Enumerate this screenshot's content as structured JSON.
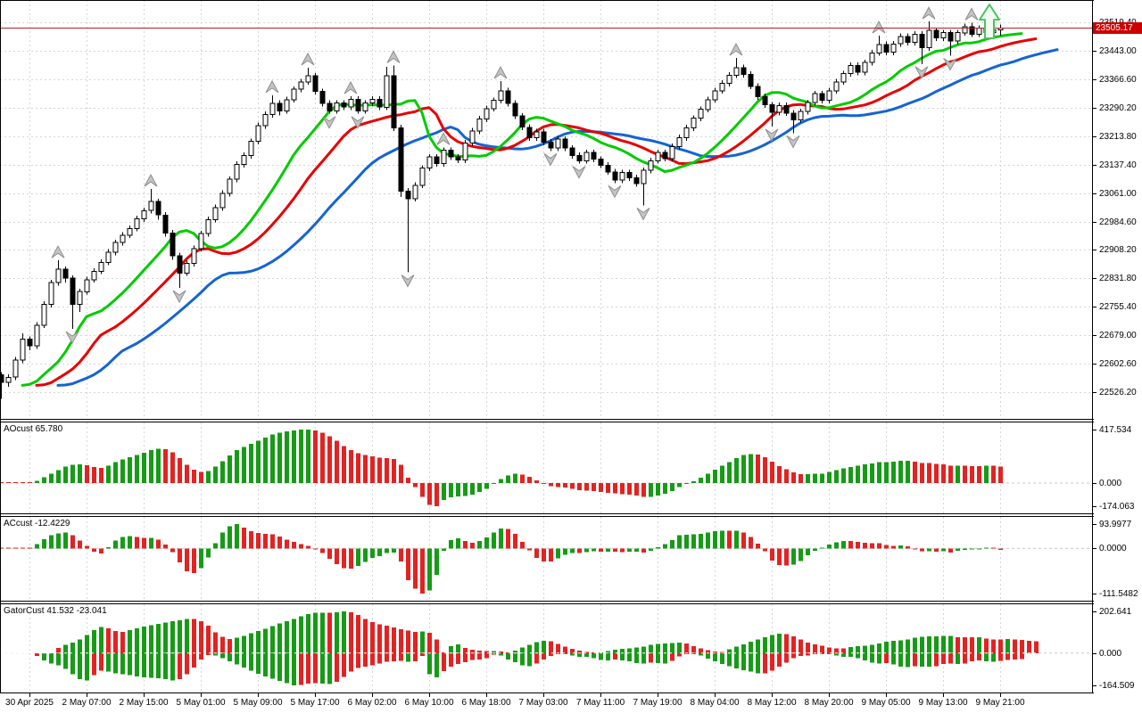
{
  "colors": {
    "background": "#ffffff",
    "grid": "#d6d6d6",
    "candle_up_fill": "#ffffff",
    "candle_down_fill": "#000000",
    "candle_border": "#000000",
    "alligator_jaw_blue": "#1464d2",
    "alligator_teeth_red": "#e80000",
    "alligator_lips_green": "#00cc00",
    "osc_up_green": "#169b16",
    "osc_down_red": "#e32222",
    "price_line": "#b22222",
    "price_label_bg": "#cc0000",
    "price_label_text": "#ffffff",
    "fractal_gray": "#c4c4c4",
    "fractal_border": "#8e8e8e",
    "signal_arrow_green": "#4cc25c"
  },
  "chart_data": {
    "type": "candlestick-with-oscillators",
    "timeframe_hint": "H1",
    "current_price": "23505.17",
    "current_price_value": 23505.17,
    "price_range": [
      22454,
      23580
    ],
    "price_labels": [
      "23519.40",
      "23443.00",
      "23366.60",
      "23290.20",
      "23213.80",
      "23137.40",
      "23061.00",
      "22984.60",
      "22908.20",
      "22831.80",
      "22755.40",
      "22679.00",
      "22602.60",
      "22526.20"
    ],
    "time_labels": [
      "30 Apr 2025",
      "2 May 07:00",
      "2 May 15:00",
      "5 May 01:00",
      "5 May 09:00",
      "5 May 17:00",
      "6 May 02:00",
      "6 May 10:00",
      "6 May 18:00",
      "7 May 03:00",
      "7 May 11:00",
      "7 May 19:00",
      "8 May 04:00",
      "8 May 12:00",
      "8 May 20:00",
      "9 May 05:00",
      "9 May 13:00",
      "9 May 21:00"
    ],
    "time_label_start_bar": 4,
    "time_label_step": 8,
    "alligator": {
      "jaw": {
        "period": 13,
        "shift": 8,
        "color_key": "alligator_jaw_blue"
      },
      "teeth": {
        "period": 8,
        "shift": 5,
        "color_key": "alligator_teeth_red"
      },
      "lips": {
        "period": 5,
        "shift": 3,
        "color_key": "alligator_lips_green"
      }
    },
    "signal_arrow": {
      "bar": 138,
      "price_top": 23568,
      "price_bottom": 23477
    },
    "panes": [
      {
        "id": "ao",
        "indicator": "AOcust",
        "title": "AOcust 65.780",
        "value": "65.780",
        "axis_max": "417.534",
        "axis_zero": "0.000",
        "axis_min": "-174.063"
      },
      {
        "id": "ac",
        "indicator": "ACcust",
        "title": "ACcust -12.4229",
        "value": "-12.4229",
        "axis_max": "93.9977",
        "axis_zero": "0.0000",
        "axis_min": "-111.5482"
      },
      {
        "id": "gator",
        "indicator": "GatorCust",
        "title": "GatorCust 41.532 -23.041",
        "value": "41.532 -23.041",
        "axis_max": "202.641",
        "axis_zero": "0.000",
        "axis_min": "-164.509"
      }
    ],
    "candles": [
      [
        22572,
        22580,
        22508,
        22552
      ],
      [
        22552,
        22574,
        22540,
        22566
      ],
      [
        22566,
        22620,
        22558,
        22612
      ],
      [
        22612,
        22684,
        22604,
        22668
      ],
      [
        22668,
        22676,
        22638,
        22650
      ],
      [
        22650,
        22714,
        22642,
        22706
      ],
      [
        22706,
        22770,
        22698,
        22762
      ],
      [
        22762,
        22828,
        22754,
        22820
      ],
      [
        22820,
        22880,
        22812,
        22856
      ],
      [
        22856,
        22864,
        22820,
        22832
      ],
      [
        22832,
        22840,
        22696,
        22762
      ],
      [
        22762,
        22804,
        22742,
        22796
      ],
      [
        22796,
        22836,
        22788,
        22828
      ],
      [
        22828,
        22859,
        22820,
        22851
      ],
      [
        22851,
        22883,
        22843,
        22875
      ],
      [
        22875,
        22910,
        22867,
        22902
      ],
      [
        22902,
        22936,
        22894,
        22928
      ],
      [
        22928,
        22956,
        22920,
        22948
      ],
      [
        22948,
        22974,
        22940,
        22966
      ],
      [
        22966,
        23000,
        22958,
        22992
      ],
      [
        22992,
        23022,
        22984,
        23014
      ],
      [
        23014,
        23072,
        23006,
        23038
      ],
      [
        23038,
        23046,
        22990,
        23002
      ],
      [
        23002,
        23010,
        22944,
        22954
      ],
      [
        22954,
        22962,
        22882,
        22893
      ],
      [
        22893,
        22901,
        22806,
        22846
      ],
      [
        22846,
        22880,
        22838,
        22872
      ],
      [
        22872,
        22920,
        22864,
        22912
      ],
      [
        22912,
        22960,
        22904,
        22952
      ],
      [
        22952,
        22998,
        22944,
        22990
      ],
      [
        22990,
        23030,
        22982,
        23022
      ],
      [
        23022,
        23068,
        23014,
        23060
      ],
      [
        23060,
        23106,
        23052,
        23098
      ],
      [
        23098,
        23146,
        23090,
        23138
      ],
      [
        23138,
        23170,
        23130,
        23162
      ],
      [
        23162,
        23208,
        23154,
        23200
      ],
      [
        23200,
        23250,
        23192,
        23242
      ],
      [
        23242,
        23280,
        23234,
        23272
      ],
      [
        23272,
        23324,
        23264,
        23302
      ],
      [
        23302,
        23310,
        23270,
        23282
      ],
      [
        23282,
        23320,
        23274,
        23312
      ],
      [
        23312,
        23348,
        23304,
        23340
      ],
      [
        23340,
        23368,
        23332,
        23360
      ],
      [
        23360,
        23398,
        23352,
        23376
      ],
      [
        23376,
        23384,
        23326,
        23334
      ],
      [
        23334,
        23342,
        23294,
        23302
      ],
      [
        23302,
        23310,
        23274,
        23282
      ],
      [
        23282,
        23311,
        23274,
        23303
      ],
      [
        23303,
        23311,
        23284,
        23292
      ],
      [
        23292,
        23321,
        23284,
        23313
      ],
      [
        23313,
        23321,
        23274,
        23282
      ],
      [
        23282,
        23311,
        23274,
        23303
      ],
      [
        23303,
        23321,
        23295,
        23313
      ],
      [
        23313,
        23321,
        23284,
        23292
      ],
      [
        23292,
        23400,
        23284,
        23376
      ],
      [
        23376,
        23404,
        23228,
        23236
      ],
      [
        23236,
        23244,
        23050,
        23066
      ],
      [
        23066,
        23074,
        22848,
        23046
      ],
      [
        23046,
        23090,
        23038,
        23082
      ],
      [
        23082,
        23136,
        23074,
        23128
      ],
      [
        23128,
        23166,
        23120,
        23158
      ],
      [
        23158,
        23166,
        23132,
        23140
      ],
      [
        23140,
        23184,
        23132,
        23176
      ],
      [
        23176,
        23184,
        23150,
        23158
      ],
      [
        23158,
        23166,
        23142,
        23150
      ],
      [
        23150,
        23204,
        23142,
        23196
      ],
      [
        23196,
        23236,
        23188,
        23228
      ],
      [
        23228,
        23268,
        23220,
        23260
      ],
      [
        23260,
        23296,
        23252,
        23288
      ],
      [
        23288,
        23318,
        23280,
        23310
      ],
      [
        23310,
        23362,
        23302,
        23336
      ],
      [
        23336,
        23344,
        23294,
        23302
      ],
      [
        23302,
        23310,
        23260,
        23268
      ],
      [
        23268,
        23276,
        23230,
        23238
      ],
      [
        23238,
        23246,
        23202,
        23210
      ],
      [
        23210,
        23234,
        23202,
        23226
      ],
      [
        23226,
        23234,
        23190,
        23198
      ],
      [
        23198,
        23206,
        23174,
        23182
      ],
      [
        23182,
        23214,
        23174,
        23206
      ],
      [
        23206,
        23214,
        23174,
        23182
      ],
      [
        23182,
        23190,
        23154,
        23162
      ],
      [
        23162,
        23170,
        23140,
        23148
      ],
      [
        23148,
        23178,
        23140,
        23170
      ],
      [
        23170,
        23178,
        23144,
        23152
      ],
      [
        23152,
        23160,
        23128,
        23136
      ],
      [
        23136,
        23144,
        23110,
        23118
      ],
      [
        23118,
        23126,
        23088,
        23096
      ],
      [
        23096,
        23124,
        23088,
        23116
      ],
      [
        23116,
        23124,
        23094,
        23102
      ],
      [
        23102,
        23110,
        23078,
        23086
      ],
      [
        23086,
        23130,
        23028,
        23122
      ],
      [
        23122,
        23156,
        23114,
        23148
      ],
      [
        23148,
        23178,
        23140,
        23170
      ],
      [
        23170,
        23178,
        23146,
        23154
      ],
      [
        23154,
        23194,
        23146,
        23186
      ],
      [
        23186,
        23218,
        23178,
        23210
      ],
      [
        23210,
        23244,
        23202,
        23236
      ],
      [
        23236,
        23270,
        23228,
        23262
      ],
      [
        23262,
        23294,
        23254,
        23286
      ],
      [
        23286,
        23320,
        23278,
        23312
      ],
      [
        23312,
        23344,
        23304,
        23336
      ],
      [
        23336,
        23364,
        23328,
        23356
      ],
      [
        23356,
        23386,
        23348,
        23378
      ],
      [
        23378,
        23424,
        23370,
        23398
      ],
      [
        23398,
        23406,
        23372,
        23380
      ],
      [
        23380,
        23388,
        23340,
        23348
      ],
      [
        23348,
        23356,
        23312,
        23320
      ],
      [
        23320,
        23328,
        23290,
        23298
      ],
      [
        23298,
        23306,
        23240,
        23278
      ],
      [
        23278,
        23304,
        23270,
        23296
      ],
      [
        23296,
        23304,
        23268,
        23276
      ],
      [
        23276,
        23284,
        23222,
        23258
      ],
      [
        23258,
        23288,
        23250,
        23280
      ],
      [
        23280,
        23312,
        23272,
        23304
      ],
      [
        23304,
        23336,
        23296,
        23328
      ],
      [
        23328,
        23336,
        23302,
        23310
      ],
      [
        23310,
        23344,
        23302,
        23336
      ],
      [
        23336,
        23368,
        23328,
        23360
      ],
      [
        23360,
        23390,
        23352,
        23382
      ],
      [
        23382,
        23412,
        23374,
        23404
      ],
      [
        23404,
        23412,
        23378,
        23386
      ],
      [
        23386,
        23420,
        23378,
        23412
      ],
      [
        23412,
        23446,
        23404,
        23438
      ],
      [
        23438,
        23484,
        23430,
        23460
      ],
      [
        23460,
        23468,
        23432,
        23440
      ],
      [
        23440,
        23470,
        23432,
        23462
      ],
      [
        23462,
        23490,
        23454,
        23482
      ],
      [
        23482,
        23490,
        23458,
        23466
      ],
      [
        23466,
        23496,
        23458,
        23488
      ],
      [
        23488,
        23496,
        23408,
        23452
      ],
      [
        23452,
        23522,
        23444,
        23498
      ],
      [
        23498,
        23506,
        23470,
        23478
      ],
      [
        23478,
        23500,
        23470,
        23492
      ],
      [
        23492,
        23500,
        23430,
        23470
      ],
      [
        23470,
        23500,
        23462,
        23492
      ],
      [
        23492,
        23516,
        23484,
        23508
      ],
      [
        23508,
        23519,
        23480,
        23488
      ],
      [
        23488,
        23512,
        23480,
        23504
      ],
      [
        23504,
        23512,
        23484,
        23492
      ],
      [
        23492,
        23508,
        23484,
        23500
      ],
      [
        23500,
        23514,
        23484,
        23505
      ]
    ]
  }
}
